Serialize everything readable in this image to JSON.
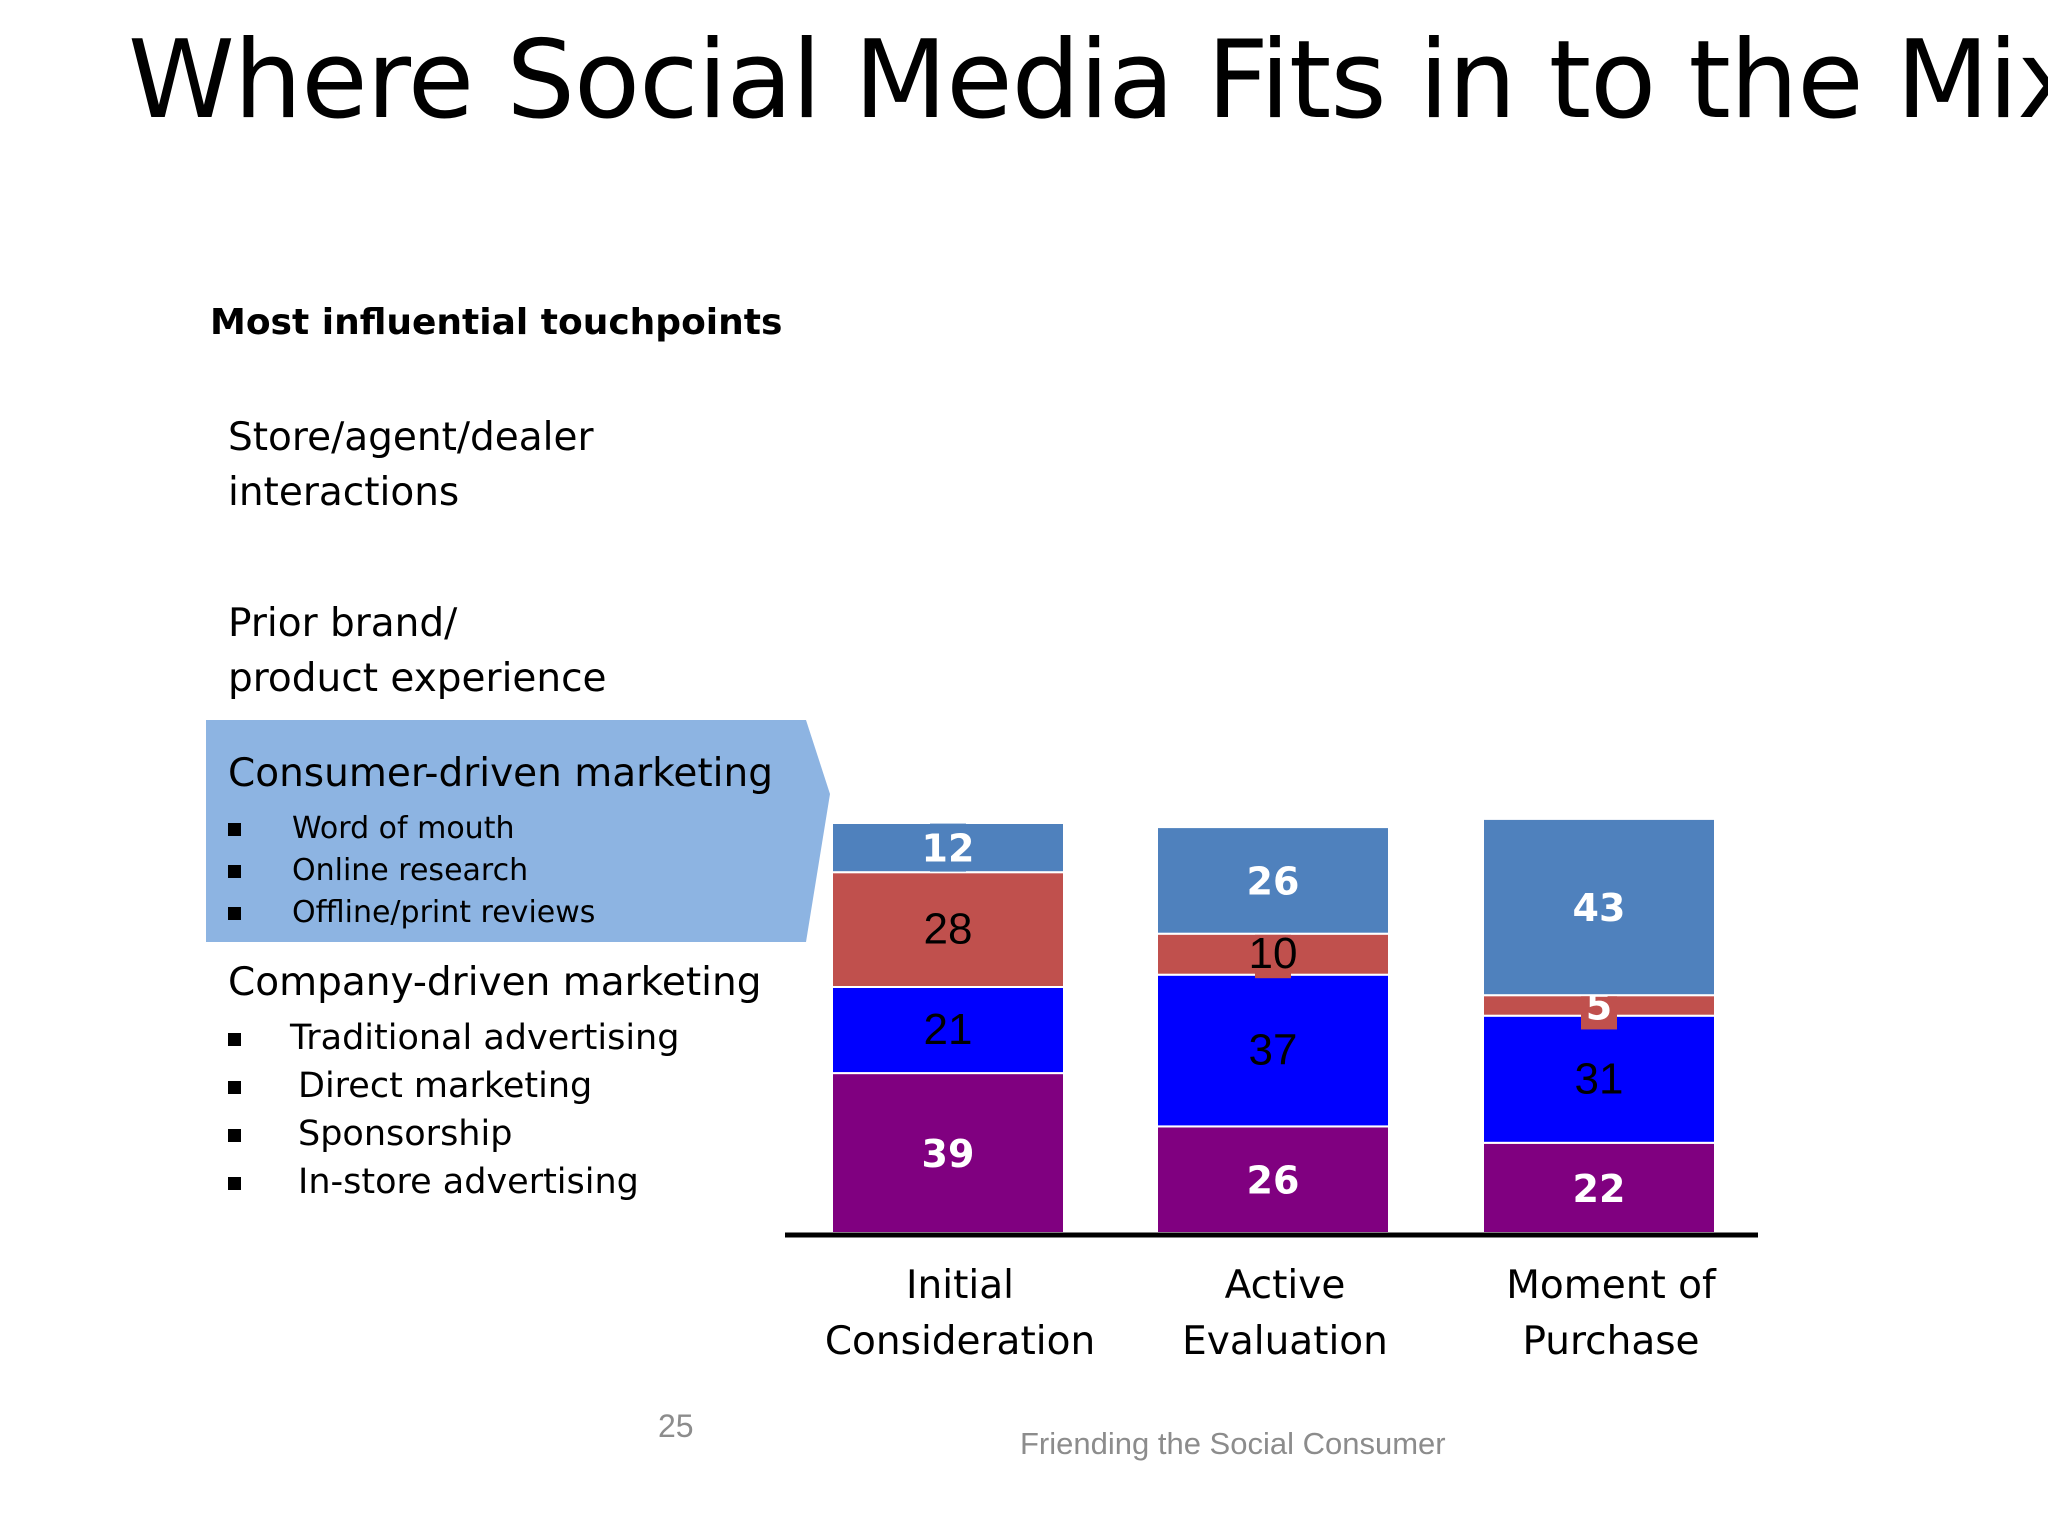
{
  "title": "Where Social Media Fits in to the Mix",
  "page_number": "25",
  "footer": "Friending the Social Consumer",
  "categories_panel": {
    "store": [
      "Store/agent/dealer",
      "interactions"
    ],
    "prior": [
      "Prior brand/",
      "product experience"
    ],
    "consumer": {
      "label": "Consumer-driven marketing",
      "bullets": [
        "Word of mouth",
        "Online research",
        "Offline/print reviews"
      ]
    },
    "company": {
      "label": "Company-driven marketing",
      "bullets": [
        "Traditional advertising",
        "Direct marketing",
        "Sponsorship",
        "In-store advertising"
      ]
    }
  },
  "colors": {
    "store": "#4f81bd",
    "prior": "#c0504d",
    "consumer": "#0000ff",
    "company": "#800080",
    "highlight": "#8db4e2"
  },
  "chart_data": {
    "type": "bar",
    "stacked": true,
    "title": "Most influential touchpoints",
    "categories": [
      [
        "Initial",
        "Consideration"
      ],
      [
        "Active",
        "Evaluation"
      ],
      [
        "Moment of",
        "Purchase"
      ]
    ],
    "series": [
      {
        "key": "company",
        "values": [
          39,
          26,
          22
        ],
        "label_color": "#ffffff",
        "label_bold": true
      },
      {
        "key": "consumer",
        "values": [
          21,
          37,
          31
        ],
        "label_color": "#000000",
        "label_bold": false
      },
      {
        "key": "prior",
        "values": [
          28,
          10,
          5
        ],
        "label_color": [
          "#000000",
          "#000000",
          "#ffffff"
        ],
        "label_bold": [
          false,
          false,
          true
        ]
      },
      {
        "key": "store",
        "values": [
          12,
          26,
          43
        ],
        "label_color": "#ffffff",
        "label_bold": true
      }
    ]
  }
}
